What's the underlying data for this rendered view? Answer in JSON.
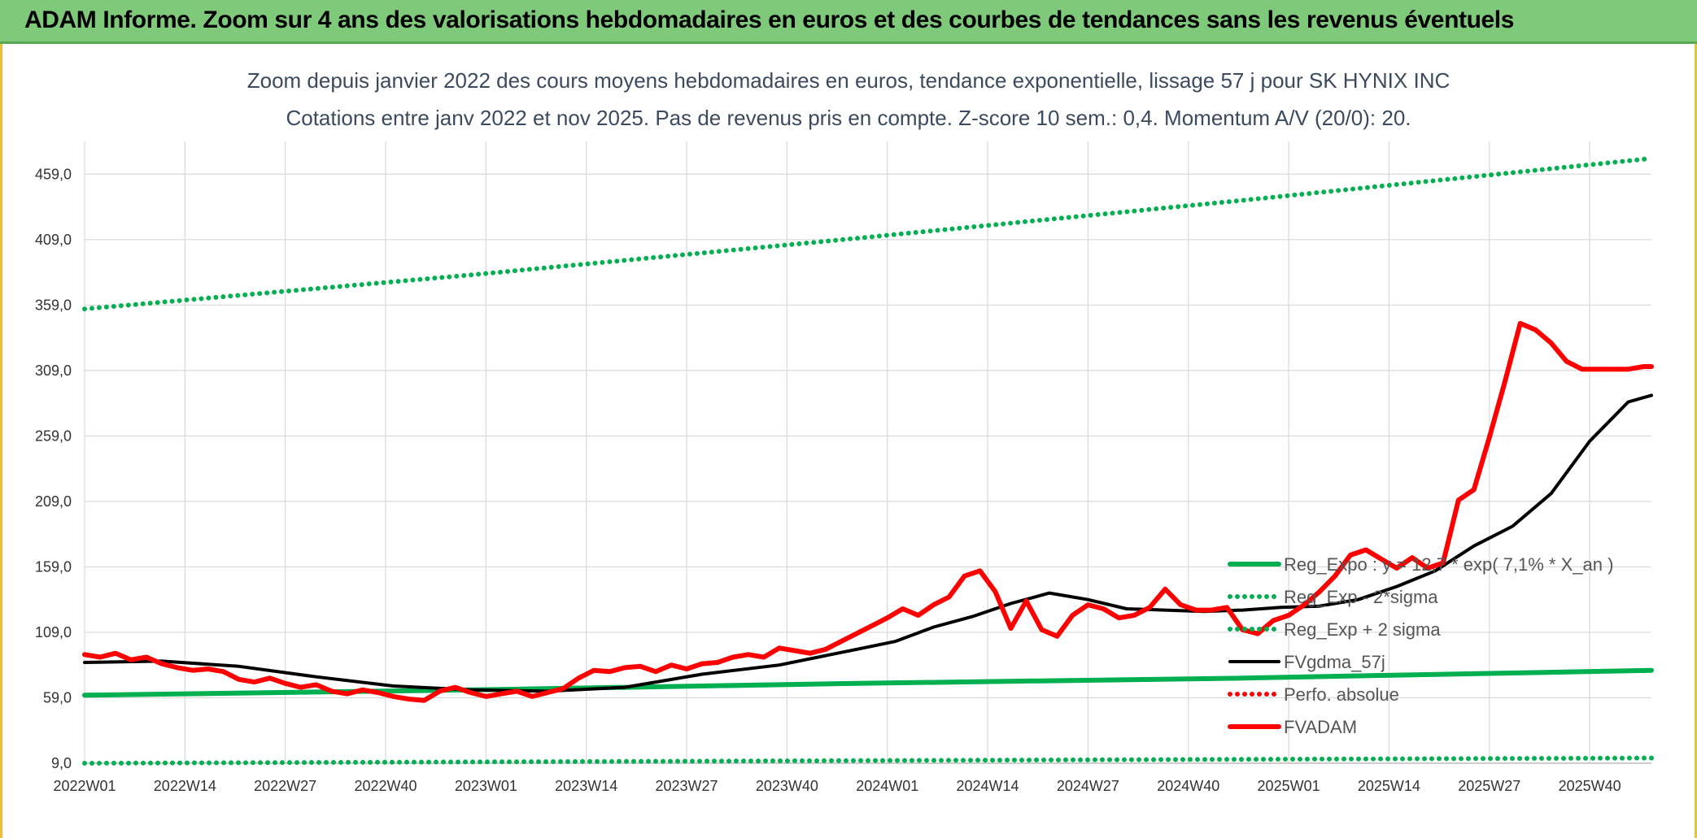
{
  "header": {
    "title": "ADAM Informe. Zoom sur 4 ans des valorisations hebdomadaires en euros et des courbes de tendances sans les revenus éventuels"
  },
  "chart_data": {
    "type": "line",
    "title": "Zoom depuis janvier 2022 des cours moyens hebdomadaires en euros, tendance exponentielle, lissage 57 j pour SK HYNIX INC",
    "subtitle": "Cotations entre janv 2022 et nov 2025. Pas de revenus pris en compte. Z-score 10 sem.: 0,4. Momentum A/V (20/0): 20.",
    "ylim": [
      9,
      484
    ],
    "yticks": [
      9.0,
      59.0,
      109.0,
      159.0,
      209.0,
      259.0,
      309.0,
      359.0,
      409.0,
      459.0
    ],
    "ytick_labels": [
      "9,0",
      "59,0",
      "109,0",
      "159,0",
      "209,0",
      "259,0",
      "309,0",
      "359,0",
      "409,0",
      "459,0"
    ],
    "xlim": [
      0,
      203
    ],
    "xticks": [
      0,
      13,
      26,
      39,
      52,
      65,
      78,
      91,
      104,
      117,
      130,
      143,
      156,
      169,
      182,
      195
    ],
    "xtick_labels": [
      "2022W01",
      "2022W14",
      "2022W27",
      "2022W40",
      "2023W01",
      "2023W14",
      "2023W27",
      "2023W40",
      "2024W01",
      "2024W14",
      "2024W27",
      "2024W40",
      "2025W01",
      "2025W14",
      "2025W27",
      "2025W40"
    ],
    "series": [
      {
        "name": "Reg_Expo : y = 12,7 * exp( 7,1% * X_an )",
        "style": "solid",
        "color": "#00b050",
        "x": [
          0,
          50,
          100,
          150,
          203
        ],
        "values": [
          61,
          65,
          70,
          74,
          80
        ]
      },
      {
        "name": "Reg_Exp - 2*sigma",
        "style": "dotted",
        "color": "#00b050",
        "x": [
          0,
          50,
          100,
          150,
          203
        ],
        "values": [
          9,
          10,
          11,
          12,
          13
        ]
      },
      {
        "name": "Reg_Exp + 2 sigma",
        "style": "dotted",
        "color": "#00b050",
        "x": [
          0,
          50,
          100,
          150,
          203
        ],
        "values": [
          356,
          382,
          410,
          439,
          471
        ]
      },
      {
        "name": "FVgdma_57j",
        "style": "solid",
        "color": "#000000",
        "x": [
          0,
          10,
          20,
          30,
          40,
          50,
          60,
          70,
          80,
          90,
          100,
          105,
          110,
          115,
          120,
          125,
          130,
          135,
          140,
          145,
          150,
          155,
          160,
          165,
          170,
          175,
          180,
          185,
          190,
          195,
          200,
          203
        ],
        "values": [
          86,
          87,
          83,
          75,
          68,
          65,
          64,
          67,
          77,
          84,
          96,
          102,
          113,
          121,
          131,
          139,
          134,
          127,
          126,
          125,
          126,
          128,
          129,
          134,
          144,
          156,
          175,
          190,
          215,
          255,
          285,
          290
        ]
      },
      {
        "name": "Perfo. absolue",
        "style": "dotted",
        "color": "#ff0000",
        "x": [],
        "values": []
      },
      {
        "name": "FVADAM",
        "style": "solid",
        "color": "#ff0000",
        "x": [
          0,
          2,
          4,
          6,
          8,
          10,
          12,
          14,
          16,
          18,
          20,
          22,
          24,
          26,
          28,
          30,
          32,
          34,
          36,
          38,
          40,
          42,
          44,
          46,
          48,
          50,
          52,
          54,
          56,
          58,
          60,
          62,
          64,
          66,
          68,
          70,
          72,
          74,
          76,
          78,
          80,
          82,
          84,
          86,
          88,
          90,
          92,
          94,
          96,
          98,
          100,
          102,
          104,
          106,
          108,
          110,
          112,
          114,
          116,
          118,
          120,
          122,
          124,
          126,
          128,
          130,
          132,
          134,
          136,
          138,
          140,
          142,
          144,
          146,
          148,
          150,
          152,
          154,
          156,
          158,
          160,
          162,
          164,
          166,
          168,
          170,
          172,
          174,
          176,
          178,
          180,
          182,
          184,
          186,
          188,
          190,
          192,
          194,
          196,
          198,
          200,
          202,
          203
        ],
        "values": [
          92,
          90,
          93,
          88,
          90,
          85,
          82,
          80,
          81,
          79,
          73,
          71,
          74,
          70,
          67,
          69,
          64,
          62,
          65,
          63,
          60,
          58,
          57,
          64,
          67,
          63,
          60,
          62,
          64,
          60,
          63,
          66,
          74,
          80,
          79,
          82,
          83,
          79,
          84,
          81,
          85,
          86,
          90,
          92,
          90,
          97,
          95,
          93,
          96,
          102,
          108,
          114,
          120,
          127,
          122,
          130,
          136,
          152,
          156,
          140,
          112,
          133,
          111,
          106,
          122,
          130,
          127,
          120,
          122,
          128,
          142,
          130,
          126,
          126,
          128,
          111,
          108,
          118,
          122,
          130,
          140,
          152,
          168,
          172,
          165,
          158,
          166,
          158,
          162,
          210,
          218,
          258,
          300,
          345,
          340,
          330,
          316,
          310,
          310,
          310,
          310,
          312,
          312
        ]
      }
    ],
    "legend_position": "bottom-right"
  }
}
